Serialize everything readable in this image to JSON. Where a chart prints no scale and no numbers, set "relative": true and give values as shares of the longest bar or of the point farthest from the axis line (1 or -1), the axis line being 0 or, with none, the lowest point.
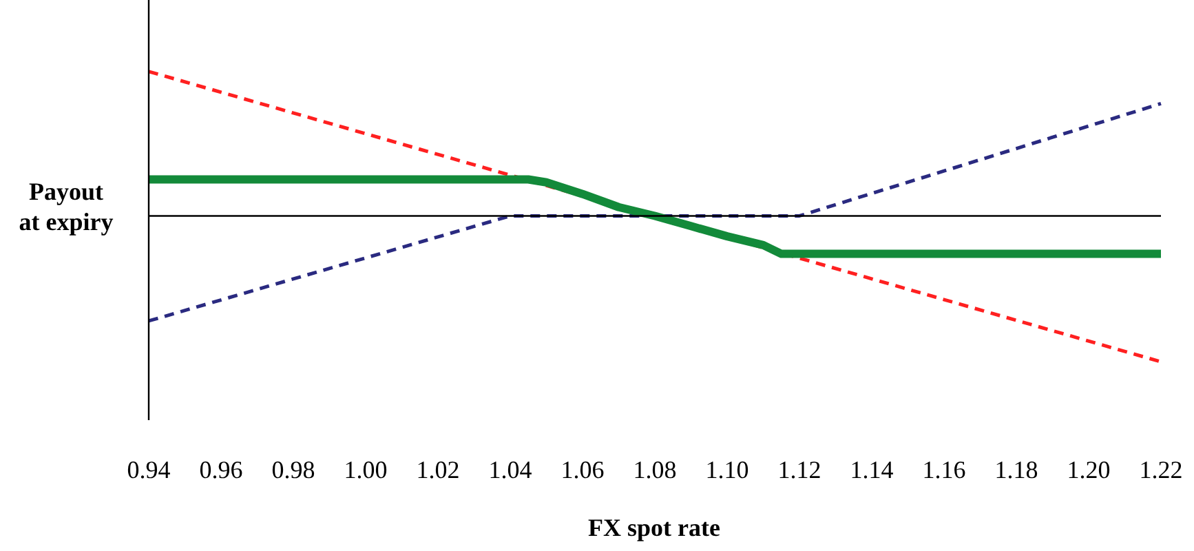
{
  "chart_data": {
    "type": "line",
    "relative": true,
    "xlabel": "FX spot rate",
    "ylabel": "Payout\nat expiry",
    "xlim": [
      0.94,
      1.22
    ],
    "xticks": [
      {
        "value": 0.94,
        "label": "0.94"
      },
      {
        "value": 0.96,
        "label": "0.96"
      },
      {
        "value": 0.98,
        "label": "0.98"
      },
      {
        "value": 1.0,
        "label": "1.00"
      },
      {
        "value": 1.02,
        "label": "1.02"
      },
      {
        "value": 1.04,
        "label": "1.04"
      },
      {
        "value": 1.06,
        "label": "1.06"
      },
      {
        "value": 1.08,
        "label": "1.08"
      },
      {
        "value": 1.1,
        "label": "1.10"
      },
      {
        "value": 1.12,
        "label": "1.12"
      },
      {
        "value": 1.14,
        "label": "1.14"
      },
      {
        "value": 1.16,
        "label": "1.16"
      },
      {
        "value": 1.18,
        "label": "1.18"
      },
      {
        "value": 1.2,
        "label": "1.20"
      },
      {
        "value": 1.22,
        "label": "1.22"
      }
    ],
    "grid": false,
    "series": [
      {
        "color": "#ff2020",
        "line_style": "dashed",
        "x": [
          0.94,
          1.22
        ],
        "values": [
          0.99,
          -1
        ]
      },
      {
        "color": "#2a2a80",
        "line_style": "dashed",
        "x": [
          0.94,
          1.04,
          1.12,
          1.22
        ],
        "values": [
          -0.72,
          0,
          0,
          0.77
        ]
      },
      {
        "color": "#138a3a",
        "line_style": "solid",
        "x": [
          0.94,
          1.045,
          1.05,
          1.06,
          1.07,
          1.08,
          1.09,
          1.1,
          1.11,
          1.115,
          1.22
        ],
        "values": [
          0.25,
          0.25,
          0.23,
          0.15,
          0.06,
          0,
          -0.07,
          -0.14,
          -0.2,
          -0.26,
          -0.26
        ]
      }
    ]
  }
}
